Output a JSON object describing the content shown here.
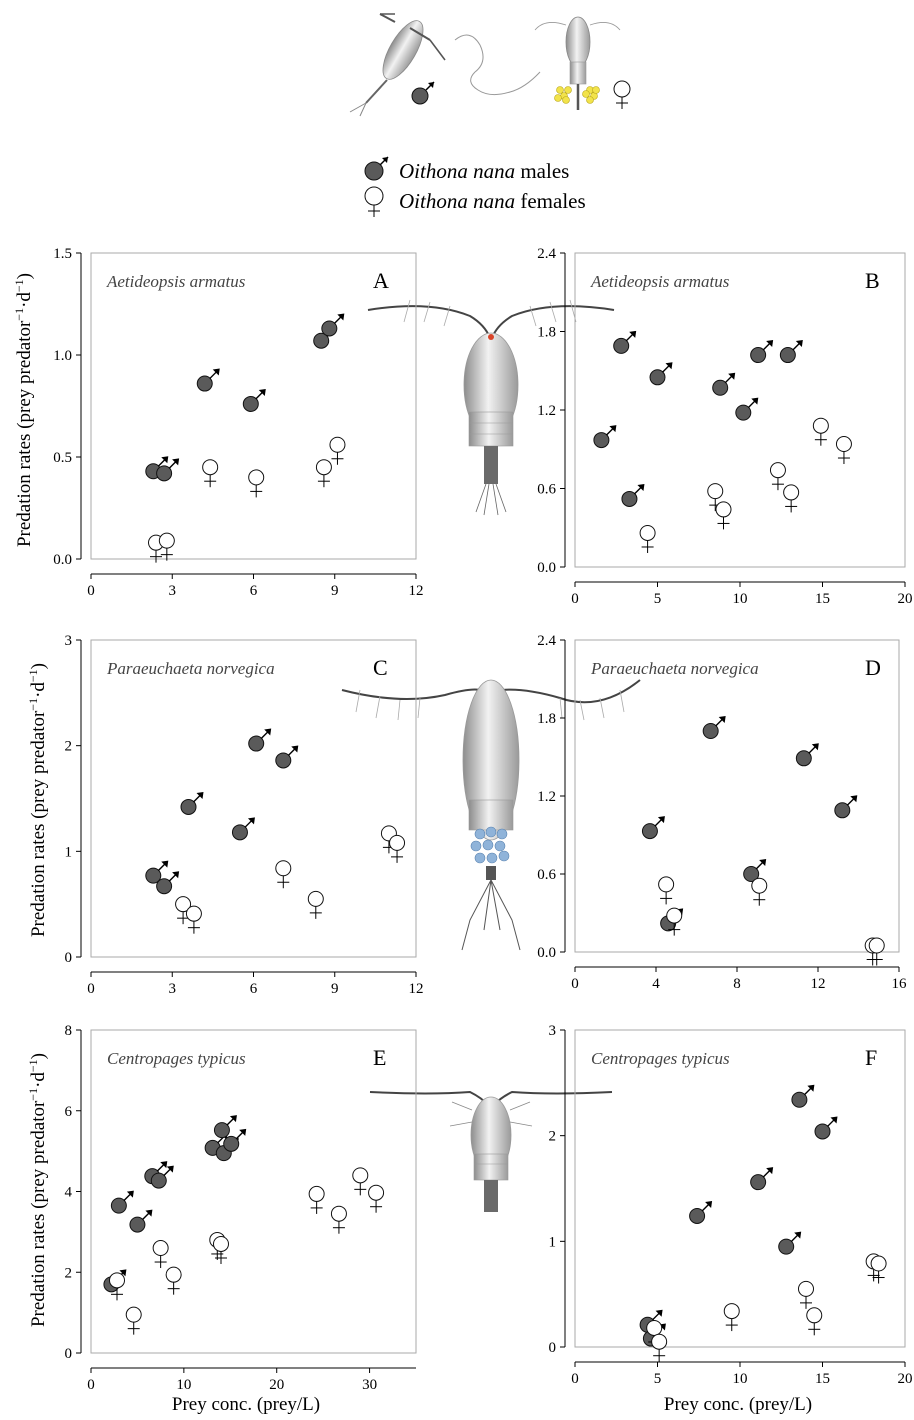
{
  "legend": {
    "male": {
      "species": "Oithona nana",
      "suffix": " males"
    },
    "female": {
      "species": "Oithona nana",
      "suffix": " females"
    }
  },
  "axis_titles": {
    "y": "Predation rates (prey predator",
    "x": "Prey conc. (prey/L)"
  },
  "colors": {
    "male_fill": "#5a5a5a",
    "female_fill": "#ffffff",
    "frame": "#aaaaaa"
  },
  "icons": [
    "male-symbol-icon",
    "female-symbol-icon",
    "copepod-illustration-icon"
  ],
  "chart_data": [
    {
      "panel": "A",
      "type": "scatter",
      "species": "Aetideopsis armatus",
      "xlim": [
        0,
        12
      ],
      "ylim": [
        0,
        1.5
      ],
      "xticks": [
        "0",
        "3",
        "6",
        "9",
        "12"
      ],
      "yticks": [
        "0.0",
        "0.5",
        "1.0",
        "1.5"
      ],
      "series": [
        {
          "name": "Oithona nana males",
          "points": [
            [
              2.3,
              0.43
            ],
            [
              2.7,
              0.42
            ],
            [
              4.2,
              0.86
            ],
            [
              5.9,
              0.76
            ],
            [
              8.5,
              1.07
            ],
            [
              8.8,
              1.13
            ]
          ]
        },
        {
          "name": "Oithona nana females",
          "points": [
            [
              2.4,
              0.08
            ],
            [
              2.8,
              0.09
            ],
            [
              4.4,
              0.45
            ],
            [
              6.1,
              0.4
            ],
            [
              8.6,
              0.45
            ],
            [
              9.1,
              0.56
            ]
          ]
        }
      ]
    },
    {
      "panel": "B",
      "type": "scatter",
      "species": "Aetideopsis armatus",
      "xlim": [
        0,
        20
      ],
      "ylim": [
        0,
        2.4
      ],
      "xticks": [
        "0",
        "5",
        "10",
        "15",
        "20"
      ],
      "yticks": [
        "0.0",
        "0.6",
        "1.2",
        "1.8",
        "2.4"
      ],
      "series": [
        {
          "name": "Oithona nana males",
          "points": [
            [
              1.6,
              0.97
            ],
            [
              2.8,
              1.69
            ],
            [
              3.3,
              0.52
            ],
            [
              5.0,
              1.45
            ],
            [
              8.8,
              1.37
            ],
            [
              10.2,
              1.18
            ],
            [
              11.1,
              1.62
            ],
            [
              12.9,
              1.62
            ]
          ]
        },
        {
          "name": "Oithona nana females",
          "points": [
            [
              4.4,
              0.26
            ],
            [
              8.5,
              0.58
            ],
            [
              9.0,
              0.44
            ],
            [
              12.3,
              0.74
            ],
            [
              13.1,
              0.57
            ],
            [
              14.9,
              1.08
            ],
            [
              16.3,
              0.94
            ]
          ]
        }
      ]
    },
    {
      "panel": "C",
      "type": "scatter",
      "species": "Paraeuchaeta norvegica",
      "xlim": [
        0,
        12
      ],
      "ylim": [
        0,
        3
      ],
      "xticks": [
        "0",
        "3",
        "6",
        "9",
        "12"
      ],
      "yticks": [
        "0",
        "1",
        "2",
        "3"
      ],
      "series": [
        {
          "name": "Oithona nana males",
          "points": [
            [
              2.3,
              0.77
            ],
            [
              2.7,
              0.67
            ],
            [
              3.6,
              1.42
            ],
            [
              5.5,
              1.18
            ],
            [
              6.1,
              2.02
            ],
            [
              7.1,
              1.86
            ]
          ]
        },
        {
          "name": "Oithona nana females",
          "points": [
            [
              3.4,
              0.5
            ],
            [
              3.8,
              0.41
            ],
            [
              7.1,
              0.84
            ],
            [
              8.3,
              0.55
            ],
            [
              11.0,
              1.17
            ],
            [
              11.3,
              1.08
            ]
          ]
        }
      ]
    },
    {
      "panel": "D",
      "type": "scatter",
      "species": "Paraeuchaeta norvegica",
      "xlim": [
        0,
        16
      ],
      "ylim": [
        0,
        2.4
      ],
      "xticks": [
        "0",
        "4",
        "8",
        "12",
        "16"
      ],
      "yticks": [
        "0.0",
        "0.6",
        "1.2",
        "1.8",
        "2.4"
      ],
      "series": [
        {
          "name": "Oithona nana males",
          "points": [
            [
              3.7,
              0.93
            ],
            [
              4.6,
              0.22
            ],
            [
              6.7,
              1.7
            ],
            [
              8.7,
              0.6
            ],
            [
              11.3,
              1.49
            ],
            [
              13.2,
              1.09
            ]
          ]
        },
        {
          "name": "Oithona nana females",
          "points": [
            [
              4.5,
              0.52
            ],
            [
              4.9,
              0.28
            ],
            [
              9.1,
              0.51
            ],
            [
              14.7,
              0.05
            ],
            [
              14.9,
              0.05
            ]
          ]
        }
      ]
    },
    {
      "panel": "E",
      "type": "scatter",
      "species": "Centropages typicus",
      "xlim": [
        0,
        35
      ],
      "ylim": [
        0,
        8
      ],
      "xticks": [
        "0",
        "10",
        "20",
        "30"
      ],
      "yticks": [
        "0",
        "2",
        "4",
        "6",
        "8"
      ],
      "series": [
        {
          "name": "Oithona nana males",
          "points": [
            [
              2.2,
              1.7
            ],
            [
              3.0,
              3.65
            ],
            [
              5.0,
              3.18
            ],
            [
              6.6,
              4.38
            ],
            [
              7.3,
              4.27
            ],
            [
              13.1,
              5.08
            ],
            [
              14.1,
              5.52
            ],
            [
              14.3,
              4.95
            ],
            [
              15.1,
              5.18
            ]
          ]
        },
        {
          "name": "Oithona nana females",
          "points": [
            [
              2.8,
              1.8
            ],
            [
              4.6,
              0.95
            ],
            [
              7.5,
              2.6
            ],
            [
              8.9,
              1.94
            ],
            [
              13.6,
              2.8
            ],
            [
              14.0,
              2.7
            ],
            [
              24.3,
              3.94
            ],
            [
              26.7,
              3.45
            ],
            [
              29.0,
              4.4
            ],
            [
              30.7,
              3.97
            ]
          ]
        }
      ]
    },
    {
      "panel": "F",
      "type": "scatter",
      "species": "Centropages typicus",
      "xlim": [
        0,
        20
      ],
      "ylim": [
        0,
        3
      ],
      "xticks": [
        "0",
        "5",
        "10",
        "15",
        "20"
      ],
      "yticks": [
        "0",
        "1",
        "2",
        "3"
      ],
      "series": [
        {
          "name": "Oithona nana males",
          "points": [
            [
              4.4,
              0.21
            ],
            [
              4.6,
              0.08
            ],
            [
              7.4,
              1.24
            ],
            [
              11.1,
              1.56
            ],
            [
              12.8,
              0.95
            ],
            [
              13.6,
              2.34
            ],
            [
              15.0,
              2.04
            ]
          ]
        },
        {
          "name": "Oithona nana females",
          "points": [
            [
              4.8,
              0.18
            ],
            [
              5.1,
              0.05
            ],
            [
              9.5,
              0.34
            ],
            [
              14.0,
              0.55
            ],
            [
              14.5,
              0.3
            ],
            [
              18.1,
              0.81
            ],
            [
              18.4,
              0.79
            ]
          ]
        }
      ]
    }
  ]
}
